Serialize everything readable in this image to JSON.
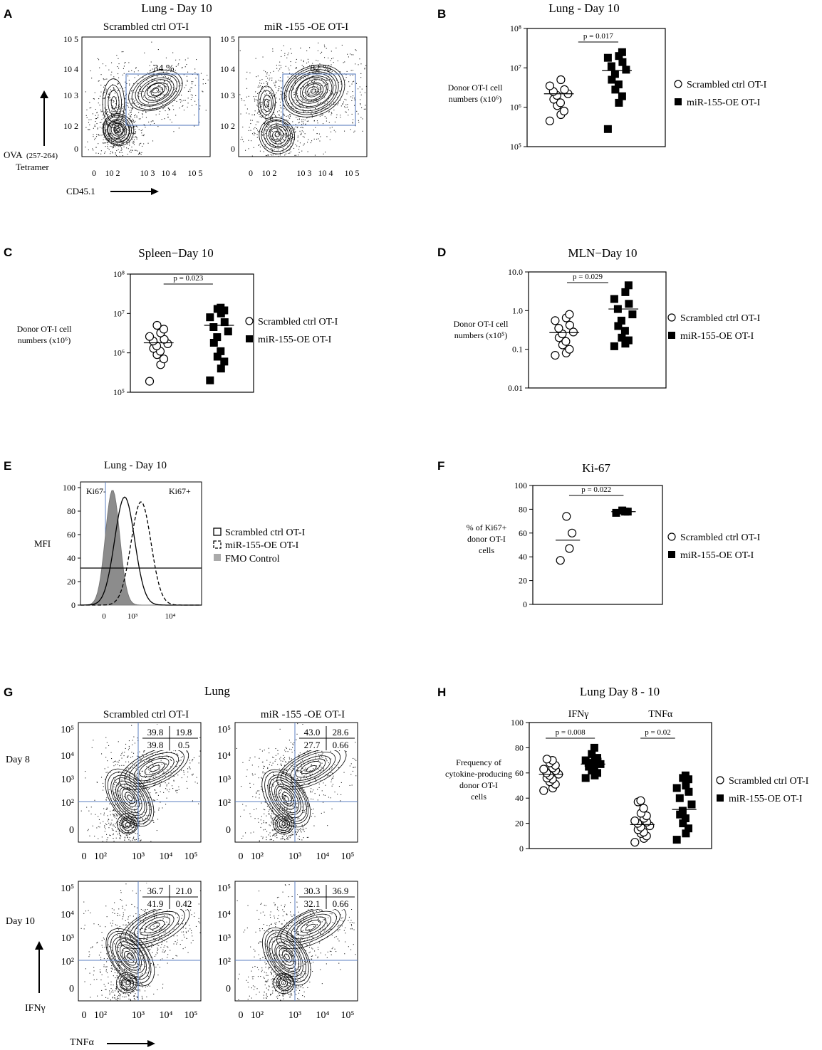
{
  "figure": {
    "panel_letters": [
      "A",
      "B",
      "C",
      "D",
      "E",
      "F",
      "G",
      "H"
    ]
  },
  "panelA": {
    "title": "Lung - Day 10",
    "col_labels": [
      "Scrambled ctrl OT-I",
      "miR -155 -OE OT-I"
    ],
    "gate_percents": [
      "34 %",
      "82 %"
    ],
    "x_label": "CD45.1",
    "y_label_line1": "OVA",
    "y_label_sub": "(257-264)",
    "y_label_line2": "Tetramer",
    "x_ticks": [
      "0",
      "10 2",
      "10 3",
      "10 4",
      "10 5"
    ],
    "y_ticks": [
      "0",
      "10 2",
      "10 3",
      "10 4",
      "10 5"
    ]
  },
  "panelE": {
    "title": "Lung - Day 10",
    "y_label": "MFI",
    "region_labels": [
      "Ki67-",
      "Ki67+"
    ],
    "legend": [
      "Scrambled ctrl OT-I",
      "miR-155-OE OT-I",
      "FMO Control"
    ],
    "y_ticks": [
      "0",
      "20",
      "40",
      "60",
      "80",
      "100"
    ],
    "x_ticks": [
      "0",
      "10³",
      "10⁴"
    ]
  },
  "panelG": {
    "title": "Lung",
    "col_labels": [
      "Scrambled ctrl OT-I",
      "miR -155 -OE OT-I"
    ],
    "row_labels": [
      "Day 8",
      "Day 10"
    ],
    "quadrants": [
      [
        "39.8",
        "19.8",
        "39.8",
        "0.5"
      ],
      [
        "43.0",
        "28.6",
        "27.7",
        "0.66"
      ],
      [
        "36.7",
        "21.0",
        "41.9",
        "0.42"
      ],
      [
        "30.3",
        "36.9",
        "32.1",
        "0.66"
      ]
    ],
    "x_label": "TNFα",
    "y_label": "IFNγ",
    "x_ticks": [
      "0",
      "10²",
      "10³",
      "10⁴",
      "10⁵"
    ],
    "y_ticks": [
      "0",
      "10²",
      "10³",
      "10⁴",
      "10⁵"
    ]
  },
  "chart_data": [
    {
      "panel": "B",
      "type": "scatter",
      "title": "Lung - Day 10",
      "ylabel": "Donor OT-I cell numbers (x10⁶)",
      "yscale": "log",
      "ylim": [
        100000,
        100000000
      ],
      "yticks": [
        "10⁵",
        "10⁶",
        "10⁷",
        "10⁸"
      ],
      "p_value": "p = 0.017",
      "series": [
        {
          "name": "Scrambled ctrl OT-I",
          "marker": "open-circle",
          "values": [
            450000,
            650000,
            800000,
            1100000,
            1300000,
            1600000,
            2000000,
            2200000,
            2500000,
            2800000,
            3500000,
            5000000
          ],
          "mean": 2200000
        },
        {
          "name": "miR-155-OE OT-I",
          "marker": "filled-square",
          "values": [
            280000,
            1300000,
            1900000,
            2800000,
            3800000,
            5000000,
            7000000,
            9000000,
            11000000,
            14000000,
            18000000,
            20000000,
            25000000
          ],
          "mean": 8500000
        }
      ]
    },
    {
      "panel": "C",
      "type": "scatter",
      "title": "Spleen−Day 10",
      "ylabel": "Donor OT-I cell numbers (x10⁶)",
      "yscale": "log",
      "ylim": [
        100000,
        100000000
      ],
      "yticks": [
        "10⁵",
        "10⁶",
        "10⁷",
        "10⁸"
      ],
      "p_value": "p = 0.023",
      "series": [
        {
          "name": "Scrambled ctrl OT-I",
          "marker": "open-circle",
          "values": [
            190000,
            500000,
            700000,
            900000,
            1100000,
            1300000,
            1500000,
            1700000,
            2000000,
            2200000,
            2600000,
            3200000,
            4000000,
            5000000
          ],
          "mean": 1800000
        },
        {
          "name": "miR-155-OE OT-I",
          "marker": "filled-square",
          "values": [
            200000,
            400000,
            600000,
            800000,
            1100000,
            1800000,
            2500000,
            3500000,
            4500000,
            6000000,
            8000000,
            10000000,
            12000000,
            13000000,
            14000000
          ],
          "mean": 5000000
        }
      ]
    },
    {
      "panel": "D",
      "type": "scatter",
      "title": "MLN−Day 10",
      "ylabel": "Donor OT-I cell numbers (x10⁵)",
      "yscale": "log",
      "ylim": [
        0.01,
        10
      ],
      "yticks": [
        "0.01",
        "0.1",
        "1.0",
        "10.0"
      ],
      "p_value": "p = 0.029",
      "series": [
        {
          "name": "Scrambled ctrl OT-I",
          "marker": "open-circle",
          "values": [
            0.07,
            0.08,
            0.1,
            0.13,
            0.16,
            0.2,
            0.25,
            0.28,
            0.35,
            0.42,
            0.55,
            0.65,
            0.8
          ],
          "mean": 0.27
        },
        {
          "name": "miR-155-OE OT-I",
          "marker": "filled-square",
          "values": [
            0.12,
            0.14,
            0.17,
            0.2,
            0.3,
            0.4,
            0.55,
            0.8,
            1.1,
            1.5,
            2.0,
            3.0,
            4.5
          ],
          "mean": 1.1
        }
      ]
    },
    {
      "panel": "F",
      "type": "scatter",
      "title": "Ki-67",
      "ylabel": "% of Ki67+ donor OT-I cells",
      "ylim": [
        0,
        100
      ],
      "yticks": [
        "0",
        "20",
        "40",
        "60",
        "80",
        "100"
      ],
      "p_value": "p = 0.022",
      "series": [
        {
          "name": "Scrambled ctrl OT-I",
          "marker": "open-circle",
          "values": [
            37,
            47,
            60,
            74
          ],
          "mean": 54
        },
        {
          "name": "miR-155-OE OT-I",
          "marker": "filled-square",
          "values": [
            77,
            78,
            78,
            79
          ],
          "mean": 78
        }
      ]
    },
    {
      "panel": "H",
      "type": "scatter",
      "title": "Lung Day 8 - 10",
      "ylabel": "Frequency of cytokine-producing donor OT-I cells",
      "ylim": [
        0,
        100
      ],
      "yticks": [
        "0",
        "20",
        "40",
        "60",
        "80",
        "100"
      ],
      "groups": [
        "IFNγ",
        "TNFα"
      ],
      "p_values": [
        "p = 0.008",
        "p = 0.02"
      ],
      "series": [
        {
          "name": "Scrambled ctrl OT-I",
          "marker": "open-circle",
          "group": "IFNγ",
          "values": [
            46,
            48,
            51,
            53,
            55,
            56,
            58,
            59,
            60,
            62,
            63,
            64,
            66,
            68,
            70,
            71
          ],
          "mean": 59
        },
        {
          "name": "miR-155-OE OT-I",
          "marker": "filled-square",
          "group": "IFNγ",
          "values": [
            56,
            58,
            60,
            62,
            63,
            65,
            66,
            67,
            68,
            69,
            70,
            71,
            72,
            75,
            80
          ],
          "mean": 67
        },
        {
          "name": "Scrambled ctrl OT-I",
          "marker": "open-circle",
          "group": "TNFα",
          "values": [
            5,
            8,
            10,
            12,
            13,
            15,
            17,
            18,
            20,
            21,
            22,
            24,
            26,
            28,
            32,
            37,
            38
          ],
          "mean": 19
        },
        {
          "name": "miR-155-OE OT-I",
          "marker": "filled-square",
          "group": "TNFα",
          "values": [
            7,
            12,
            16,
            20,
            24,
            27,
            30,
            35,
            40,
            45,
            48,
            50,
            55,
            56,
            58
          ],
          "mean": 31
        }
      ]
    }
  ]
}
